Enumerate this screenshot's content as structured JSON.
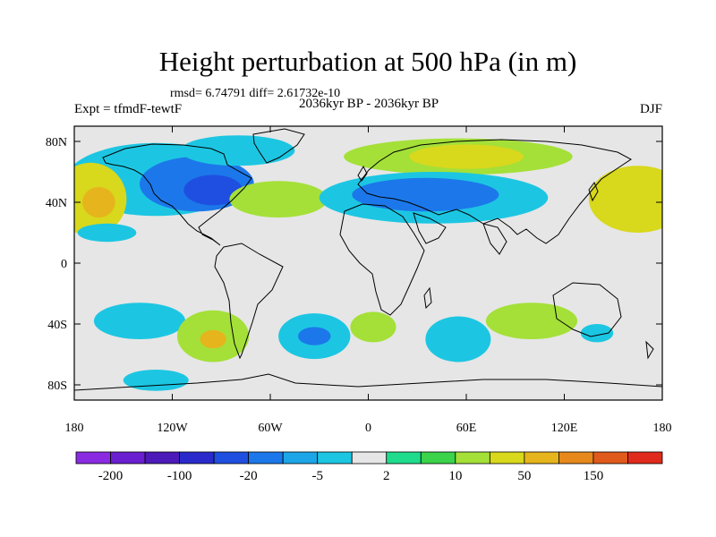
{
  "chart_data": {
    "type": "heatmap",
    "title": "Height perturbation at 500 hPa (in m)",
    "stats_line": "rmsd= 6.74791 diff= 2.61732e-10",
    "left_label": "Expt = tfmdF-tewtF",
    "center_label": "2036kyr BP - 2036kyr BP",
    "right_label": "DJF",
    "projection": "cylindrical equidistant",
    "x_range": [
      -180,
      180
    ],
    "y_range": [
      -90,
      90
    ],
    "x_ticks": [
      {
        "value": -180,
        "label": "180"
      },
      {
        "value": -120,
        "label": "120W"
      },
      {
        "value": -60,
        "label": "60W"
      },
      {
        "value": 0,
        "label": "0"
      },
      {
        "value": 60,
        "label": "60E"
      },
      {
        "value": 120,
        "label": "120E"
      },
      {
        "value": 180,
        "label": "180"
      }
    ],
    "y_ticks": [
      {
        "value": 80,
        "label": "80N"
      },
      {
        "value": 40,
        "label": "40N"
      },
      {
        "value": 0,
        "label": "0"
      },
      {
        "value": -40,
        "label": "40S"
      },
      {
        "value": -80,
        "label": "80S"
      }
    ],
    "colorbar": {
      "colors": [
        "#8a2be2",
        "#6a1fd0",
        "#4b1ab8",
        "#2a2acc",
        "#1f4fe0",
        "#1c78ea",
        "#1ca6e8",
        "#1cc6e2",
        "#e6e6e6",
        "#1edc8c",
        "#3ad34a",
        "#a4e038",
        "#d8d81c",
        "#e6b41c",
        "#e6881c",
        "#e05a1c",
        "#e02a1c"
      ],
      "labels": [
        {
          "index": 1,
          "text": "-200"
        },
        {
          "index": 3,
          "text": "-100"
        },
        {
          "index": 5,
          "text": "-20"
        },
        {
          "index": 7,
          "text": "-5"
        },
        {
          "index": 9,
          "text": "2"
        },
        {
          "index": 11,
          "text": "10"
        },
        {
          "index": 13,
          "text": "50"
        },
        {
          "index": 15,
          "text": "150"
        }
      ]
    },
    "anomaly_regions": [
      {
        "name": "n-pacific-band",
        "lon": -130,
        "lat": 55,
        "rx": 55,
        "ry": 24,
        "level": "-5"
      },
      {
        "name": "n-america-low",
        "lon": -105,
        "lat": 52,
        "rx": 35,
        "ry": 18,
        "level": "-20"
      },
      {
        "name": "n-america-core",
        "lon": -95,
        "lat": 48,
        "rx": 18,
        "ry": 10,
        "level": "-50"
      },
      {
        "name": "arctic-canada",
        "lon": -80,
        "lat": 74,
        "rx": 35,
        "ry": 10,
        "level": "-5"
      },
      {
        "name": "n-atlantic-high",
        "lon": -55,
        "lat": 42,
        "rx": 30,
        "ry": 12,
        "level": "10"
      },
      {
        "name": "eurasia-high-band",
        "lon": 55,
        "lat": 70,
        "rx": 70,
        "ry": 12,
        "level": "10"
      },
      {
        "name": "siberia-high",
        "lon": 60,
        "lat": 70,
        "rx": 35,
        "ry": 8,
        "level": "20"
      },
      {
        "name": "eurasia-low-band",
        "lon": 40,
        "lat": 43,
        "rx": 70,
        "ry": 17,
        "level": "-5"
      },
      {
        "name": "eurasia-low",
        "lon": 35,
        "lat": 45,
        "rx": 45,
        "ry": 11,
        "level": "-20"
      },
      {
        "name": "n-pacific-east-high",
        "lon": 165,
        "lat": 42,
        "rx": 30,
        "ry": 22,
        "level": "20"
      },
      {
        "name": "n-pacific-west-high",
        "lon": -170,
        "lat": 42,
        "rx": 22,
        "ry": 24,
        "level": "20"
      },
      {
        "name": "n-pacific-core-high",
        "lon": -165,
        "lat": 40,
        "rx": 10,
        "ry": 10,
        "level": "50"
      },
      {
        "name": "s-pacific-low",
        "lon": -140,
        "lat": -38,
        "rx": 28,
        "ry": 12,
        "level": "-5"
      },
      {
        "name": "s-pacific-high",
        "lon": -95,
        "lat": -48,
        "rx": 22,
        "ry": 17,
        "level": "10"
      },
      {
        "name": "s-pacific-high-core",
        "lon": -95,
        "lat": -50,
        "rx": 8,
        "ry": 6,
        "level": "50"
      },
      {
        "name": "s-atlantic-low",
        "lon": -33,
        "lat": -48,
        "rx": 22,
        "ry": 15,
        "level": "-5"
      },
      {
        "name": "s-atlantic-core",
        "lon": -33,
        "lat": -48,
        "rx": 10,
        "ry": 6,
        "level": "-20"
      },
      {
        "name": "s-africa-high",
        "lon": 3,
        "lat": -42,
        "rx": 14,
        "ry": 10,
        "level": "10"
      },
      {
        "name": "indian-ocean-low",
        "lon": 55,
        "lat": -50,
        "rx": 20,
        "ry": 15,
        "level": "-5"
      },
      {
        "name": "indian-ocean-high",
        "lon": 100,
        "lat": -38,
        "rx": 28,
        "ry": 12,
        "level": "10"
      },
      {
        "name": "tasman-low",
        "lon": 140,
        "lat": -46,
        "rx": 10,
        "ry": 6,
        "level": "-5"
      },
      {
        "name": "antarctic-low",
        "lon": -130,
        "lat": -77,
        "rx": 20,
        "ry": 7,
        "level": "-5"
      },
      {
        "name": "subtropical-pacific-low",
        "lon": -160,
        "lat": 20,
        "rx": 18,
        "ry": 6,
        "level": "-5"
      }
    ]
  }
}
